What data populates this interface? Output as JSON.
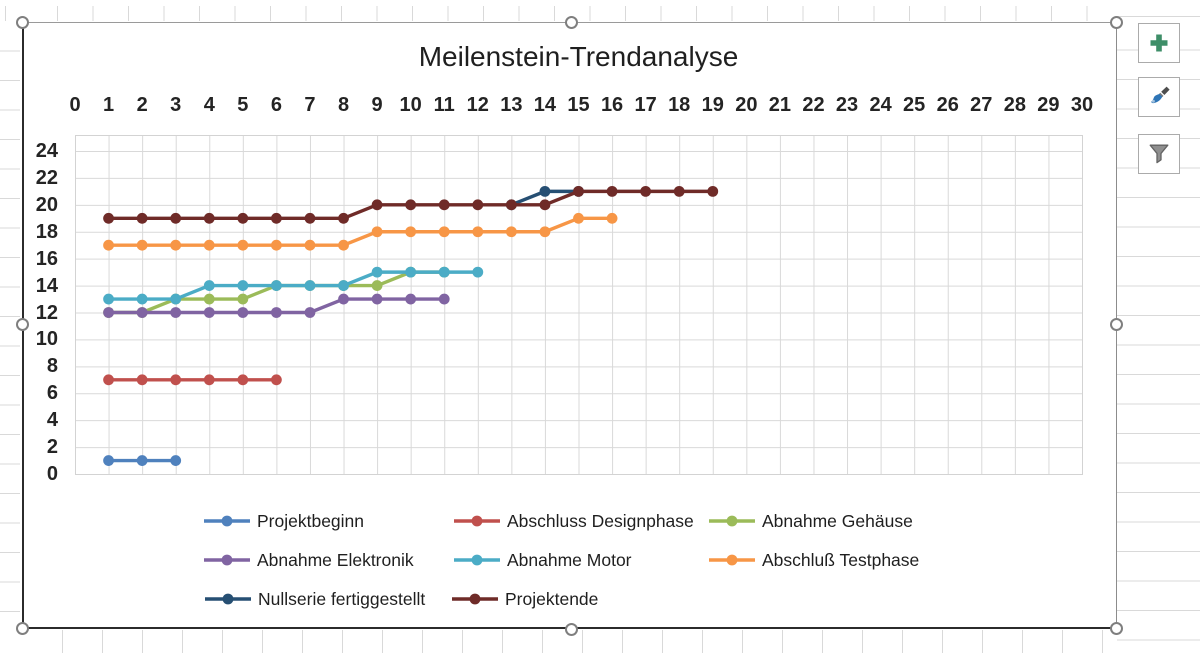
{
  "chart_data": {
    "type": "line",
    "title": "Meilenstein-Trendanalyse",
    "x_axis": {
      "position": "top",
      "min": 0,
      "max": 30,
      "ticks": [
        0,
        1,
        2,
        3,
        4,
        5,
        6,
        7,
        8,
        9,
        10,
        11,
        12,
        13,
        14,
        15,
        16,
        17,
        18,
        19,
        20,
        21,
        22,
        23,
        24,
        25,
        26,
        27,
        28,
        29,
        30
      ]
    },
    "y_axis": {
      "min": 0,
      "max": 24,
      "ticks": [
        24,
        22,
        20,
        18,
        16,
        14,
        12,
        10,
        8,
        6,
        4,
        2,
        0
      ]
    },
    "grid": true,
    "legend_position": "bottom",
    "series": [
      {
        "name": "Projektbeginn",
        "color": "#4F81BD",
        "x": [
          1,
          2,
          3
        ],
        "y": [
          1,
          1,
          1
        ]
      },
      {
        "name": "Abschluss Designphase",
        "color": "#C0504D",
        "x": [
          1,
          2,
          3,
          4,
          5,
          6
        ],
        "y": [
          7,
          7,
          7,
          7,
          7,
          7
        ]
      },
      {
        "name": "Abnahme Gehäuse",
        "color": "#9BBB59",
        "x": [
          1,
          2,
          3,
          4,
          5,
          6,
          7,
          8,
          9,
          10,
          11
        ],
        "y": [
          12,
          12,
          13,
          13,
          13,
          14,
          14,
          14,
          14,
          15,
          15
        ]
      },
      {
        "name": "Abnahme Elektronik",
        "color": "#8064A2",
        "x": [
          1,
          2,
          3,
          4,
          5,
          6,
          7,
          8,
          9,
          10,
          11
        ],
        "y": [
          12,
          12,
          12,
          12,
          12,
          12,
          12,
          13,
          13,
          13,
          13
        ]
      },
      {
        "name": "Abnahme Motor",
        "color": "#4BACC6",
        "x": [
          1,
          2,
          3,
          4,
          5,
          6,
          7,
          8,
          9,
          10,
          11,
          12
        ],
        "y": [
          13,
          13,
          13,
          14,
          14,
          14,
          14,
          14,
          15,
          15,
          15,
          15
        ]
      },
      {
        "name": "Abschluß Testphase",
        "color": "#F79646",
        "x": [
          1,
          2,
          3,
          4,
          5,
          6,
          7,
          8,
          9,
          10,
          11,
          12,
          13,
          14,
          15,
          16
        ],
        "y": [
          17,
          17,
          17,
          17,
          17,
          17,
          17,
          17,
          18,
          18,
          18,
          18,
          18,
          18,
          19,
          19
        ]
      },
      {
        "name": "Nullserie fertiggestellt",
        "color": "#264F73",
        "x": [
          13,
          14,
          15
        ],
        "y": [
          20,
          21,
          21
        ]
      },
      {
        "name": "Projektende",
        "color": "#6F2B28",
        "x": [
          1,
          2,
          3,
          4,
          5,
          6,
          7,
          8,
          9,
          10,
          11,
          12,
          13,
          14,
          15,
          16,
          17,
          18,
          19
        ],
        "y": [
          19,
          19,
          19,
          19,
          19,
          19,
          19,
          19,
          20,
          20,
          20,
          20,
          20,
          20,
          21,
          21,
          21,
          21,
          21
        ]
      }
    ],
    "legend_rows": [
      [
        0,
        1,
        2
      ],
      [
        3,
        4,
        5
      ],
      [
        6,
        7
      ]
    ]
  },
  "toolbar": {
    "buttons": [
      {
        "icon": "plus-icon"
      },
      {
        "icon": "paintbrush-icon"
      },
      {
        "icon": "funnel-icon"
      }
    ]
  }
}
